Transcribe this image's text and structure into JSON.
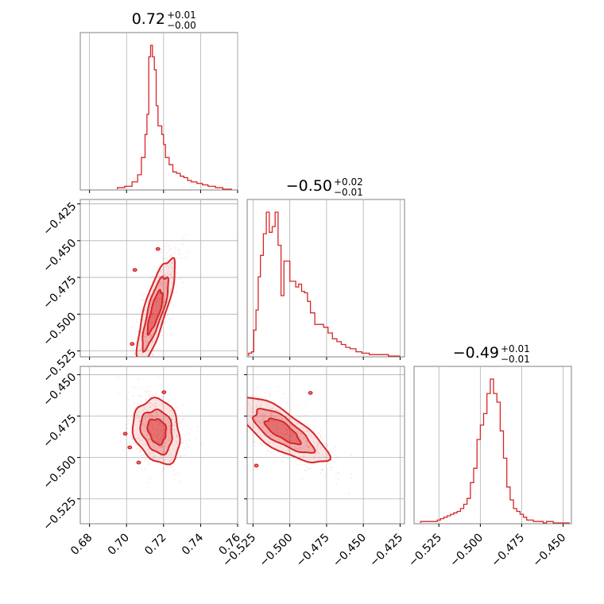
{
  "chart_data": {
    "type": "corner",
    "accent_color": "#d62728",
    "grid": true,
    "parameters": [
      {
        "title_value": "0.72",
        "title_plus": "+0.01",
        "title_minus": "−0.00",
        "range": [
          0.675,
          0.76
        ],
        "ticks": [
          0.68,
          0.7,
          0.72,
          0.74,
          0.76
        ],
        "tick_labels": [
          "0.68",
          "0.70",
          "0.72",
          "0.74",
          "0.76"
        ],
        "histogram": {
          "bin_edges": [
            0.695,
            0.699,
            0.703,
            0.706,
            0.708,
            0.71,
            0.711,
            0.712,
            0.713,
            0.714,
            0.715,
            0.716,
            0.717,
            0.718,
            0.719,
            0.72,
            0.721,
            0.723,
            0.725,
            0.727,
            0.729,
            0.731,
            0.733,
            0.735,
            0.738,
            0.741,
            0.744,
            0.748,
            0.752,
            0.757
          ],
          "counts": [
            1,
            2,
            5,
            10,
            22,
            38,
            52,
            92,
            100,
            92,
            83,
            58,
            44,
            44,
            38,
            31,
            22,
            17,
            12,
            11,
            9,
            8,
            6,
            5,
            4,
            3,
            2,
            1,
            0
          ]
        }
      },
      {
        "title_value": "−0.50",
        "title_plus": "+0.02",
        "title_minus": "−0.01",
        "range": [
          -0.529,
          -0.422
        ],
        "ticks": [
          -0.525,
          -0.5,
          -0.475,
          -0.45,
          -0.425
        ],
        "tick_labels": [
          "−0.525",
          "−0.500",
          "−0.475",
          "−0.450",
          "−0.425"
        ],
        "histogram": {
          "bin_edges": [
            -0.528,
            -0.526,
            -0.5245,
            -0.523,
            -0.5215,
            -0.52,
            -0.518,
            -0.516,
            -0.514,
            -0.512,
            -0.51,
            -0.508,
            -0.506,
            -0.504,
            -0.502,
            -0.5,
            -0.498,
            -0.496,
            -0.494,
            -0.492,
            -0.49,
            -0.488,
            -0.486,
            -0.483,
            -0.48,
            -0.477,
            -0.474,
            -0.471,
            -0.468,
            -0.465,
            -0.462,
            -0.459,
            -0.455,
            -0.451,
            -0.446,
            -0.44,
            -0.433,
            -0.425
          ],
          "counts": [
            2,
            3,
            18,
            32,
            55,
            70,
            85,
            100,
            86,
            90,
            100,
            77,
            42,
            66,
            66,
            52,
            52,
            48,
            50,
            45,
            44,
            38,
            30,
            22,
            22,
            20,
            16,
            12,
            10,
            8,
            6,
            5,
            3,
            2,
            1,
            1,
            0
          ]
        }
      },
      {
        "title_value": "−0.49",
        "title_plus": "+0.01",
        "title_minus": "−0.01",
        "range": [
          -0.54,
          -0.445
        ],
        "ticks": [
          -0.525,
          -0.5,
          -0.475,
          -0.45
        ],
        "tick_labels": [
          "−0.525",
          "−0.500",
          "−0.475",
          "−0.450"
        ],
        "histogram": {
          "bin_edges": [
            -0.536,
            -0.526,
            -0.524,
            -0.522,
            -0.52,
            -0.518,
            -0.516,
            -0.514,
            -0.512,
            -0.51,
            -0.508,
            -0.506,
            -0.504,
            -0.502,
            -0.5,
            -0.498,
            -0.496,
            -0.494,
            -0.492,
            -0.49,
            -0.488,
            -0.486,
            -0.484,
            -0.482,
            -0.48,
            -0.478,
            -0.476,
            -0.474,
            -0.472,
            -0.47,
            -0.468,
            -0.466,
            -0.464,
            -0.462,
            -0.46,
            -0.456,
            -0.452,
            -0.446
          ],
          "counts": [
            1,
            2,
            3,
            4,
            5,
            6,
            7,
            8,
            10,
            13,
            17,
            28,
            38,
            58,
            68,
            76,
            90,
            100,
            90,
            84,
            64,
            45,
            25,
            16,
            10,
            8,
            6,
            4,
            2,
            2,
            1,
            1,
            1,
            0,
            1,
            0,
            0
          ]
        }
      }
    ],
    "pairs": [
      {
        "row": 1,
        "col": 0,
        "center": [
          0.7155,
          -0.498
        ],
        "spread": [
          0.0045,
          0.016
        ],
        "correlation": 0.8
      },
      {
        "row": 2,
        "col": 0,
        "center": [
          0.7165,
          -0.484
        ],
        "spread": [
          0.0055,
          0.0085
        ],
        "correlation": -0.2
      },
      {
        "row": 2,
        "col": 1,
        "center": [
          -0.505,
          -0.484
        ],
        "spread": [
          0.013,
          0.0085
        ],
        "correlation": -0.75
      }
    ]
  }
}
